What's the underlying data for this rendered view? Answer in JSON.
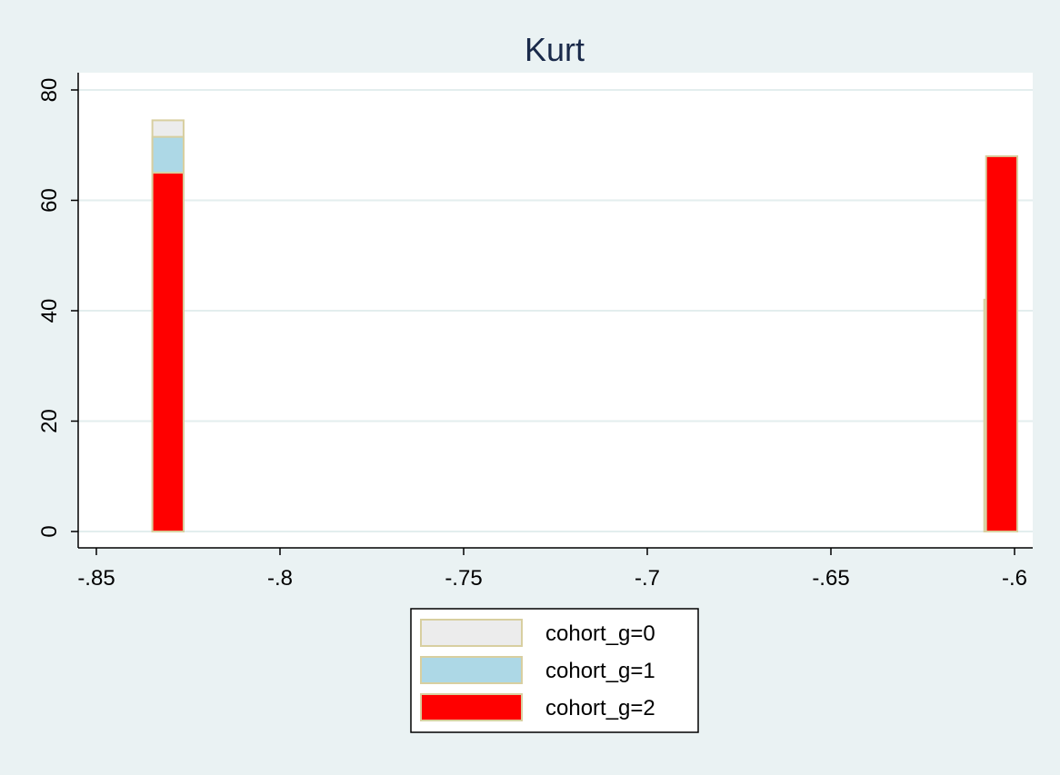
{
  "chart_data": {
    "type": "bar",
    "title": "Kurt",
    "xlabel": "",
    "ylabel": "",
    "xlim": [
      -0.855,
      -0.596
    ],
    "ylim": [
      -3,
      83
    ],
    "x_ticks": [
      -0.85,
      -0.8,
      -0.75,
      -0.7,
      -0.65,
      -0.6
    ],
    "x_tick_labels": [
      "-.85",
      "-.8",
      "-.75",
      "-.7",
      "-.65",
      "-.6"
    ],
    "y_ticks": [
      0,
      20,
      40,
      60,
      80
    ],
    "y_tick_labels": [
      "0",
      "20",
      "40",
      "60",
      "80"
    ],
    "grid": true,
    "legend_position": "bottom",
    "bin_width": 0.0085,
    "series": [
      {
        "name": "cohort_g=0",
        "color": "#ececec",
        "edge_color": "#d8cfa0",
        "bins": [
          {
            "x": -0.8305,
            "value": 74.5
          },
          {
            "x": -0.604,
            "value": 42
          }
        ]
      },
      {
        "name": "cohort_g=1",
        "color": "#add8e6",
        "edge_color": "#d8cfa0",
        "bins": [
          {
            "x": -0.8305,
            "value": 71.5
          }
        ]
      },
      {
        "name": "cohort_g=2",
        "color": "#ff0000",
        "edge_color": "#d8cfa0",
        "bins": [
          {
            "x": -0.8305,
            "value": 65
          },
          {
            "x": -0.6035,
            "value": 68
          }
        ]
      }
    ]
  }
}
